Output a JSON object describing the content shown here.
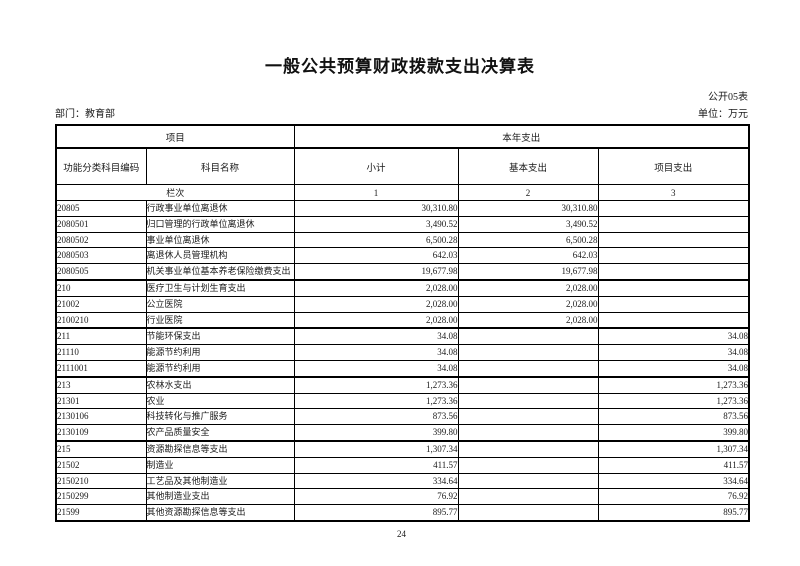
{
  "page": {
    "title": "一般公共预算财政拨款支出决算表",
    "table_code": "公开05表",
    "department_label": "部门：教育部",
    "unit_label": "单位：万元",
    "page_number": "24"
  },
  "colors": {
    "ink": "#000000",
    "paper": "#ffffff"
  },
  "table": {
    "header": {
      "group_left": "项目",
      "group_right": "本年支出",
      "col_code": "功能分类科目编码",
      "col_name": "科目名称",
      "col_subtotal": "小计",
      "col_basic": "基本支出",
      "col_project": "项目支出",
      "lane_label": "栏次",
      "lane_numbers": [
        "1",
        "2",
        "3"
      ]
    },
    "rows": [
      {
        "code": "20805",
        "name": "行政事业单位离退休",
        "subtotal": "30,310.80",
        "basic": "30,310.80",
        "project": "",
        "bold": false,
        "section": false
      },
      {
        "code": "2080501",
        "name": "归口管理的行政单位离退休",
        "subtotal": "3,490.52",
        "basic": "3,490.52",
        "project": "",
        "bold": false,
        "section": false
      },
      {
        "code": "2080502",
        "name": "事业单位离退休",
        "subtotal": "6,500.28",
        "basic": "6,500.28",
        "project": "",
        "bold": false,
        "section": false
      },
      {
        "code": "2080503",
        "name": "离退休人员管理机构",
        "subtotal": "642.03",
        "basic": "642.03",
        "project": "",
        "bold": false,
        "section": false
      },
      {
        "code": "2080505",
        "name": "机关事业单位基本养老保险缴费支出",
        "subtotal": "19,677.98",
        "basic": "19,677.98",
        "project": "",
        "bold": false,
        "section": false
      },
      {
        "code": "210",
        "name": "医疗卫生与计划生育支出",
        "subtotal": "2,028.00",
        "basic": "2,028.00",
        "project": "",
        "bold": true,
        "section": true
      },
      {
        "code": "21002",
        "name": "公立医院",
        "subtotal": "2,028.00",
        "basic": "2,028.00",
        "project": "",
        "bold": false,
        "section": false
      },
      {
        "code": "2100210",
        "name": "行业医院",
        "subtotal": "2,028.00",
        "basic": "2,028.00",
        "project": "",
        "bold": false,
        "section": false
      },
      {
        "code": "211",
        "name": "节能环保支出",
        "subtotal": "34.08",
        "basic": "",
        "project": "34.08",
        "bold": false,
        "section": true
      },
      {
        "code": "21110",
        "name": "能源节约利用",
        "subtotal": "34.08",
        "basic": "",
        "project": "34.08",
        "bold": false,
        "section": false
      },
      {
        "code": "2111001",
        "name": "能源节约利用",
        "subtotal": "34.08",
        "basic": "",
        "project": "34.08",
        "bold": false,
        "section": false
      },
      {
        "code": "213",
        "name": "农林水支出",
        "subtotal": "1,273.36",
        "basic": "",
        "project": "1,273.36",
        "bold": true,
        "section": true
      },
      {
        "code": "21301",
        "name": "农业",
        "subtotal": "1,273.36",
        "basic": "",
        "project": "1,273.36",
        "bold": false,
        "section": false
      },
      {
        "code": "2130106",
        "name": "科技转化与推广服务",
        "subtotal": "873.56",
        "basic": "",
        "project": "873.56",
        "bold": false,
        "section": false
      },
      {
        "code": "2130109",
        "name": "农产品质量安全",
        "subtotal": "399.80",
        "basic": "",
        "project": "399.80",
        "bold": false,
        "section": false
      },
      {
        "code": "215",
        "name": "资源勘探信息等支出",
        "subtotal": "1,307.34",
        "basic": "",
        "project": "1,307.34",
        "bold": true,
        "section": true
      },
      {
        "code": "21502",
        "name": "制造业",
        "subtotal": "411.57",
        "basic": "",
        "project": "411.57",
        "bold": false,
        "section": false
      },
      {
        "code": "2150210",
        "name": "工艺品及其他制造业",
        "subtotal": "334.64",
        "basic": "",
        "project": "334.64",
        "bold": false,
        "section": false
      },
      {
        "code": "2150299",
        "name": "其他制造业支出",
        "subtotal": "76.92",
        "basic": "",
        "project": "76.92",
        "bold": false,
        "section": false
      },
      {
        "code": "21599",
        "name": "其他资源勘探信息等支出",
        "subtotal": "895.77",
        "basic": "",
        "project": "895.77",
        "bold": false,
        "section": false
      }
    ]
  }
}
